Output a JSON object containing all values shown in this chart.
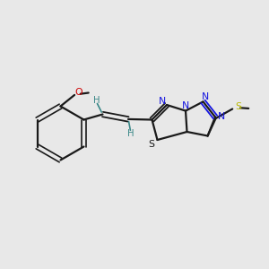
{
  "bg_color": "#e8e8e8",
  "bond_color": "#1a1a1a",
  "N_color": "#1414e0",
  "S_ring_color": "#1a1a1a",
  "S_methyl_color": "#b8b800",
  "O_color": "#cc0000",
  "H_color": "#3a8888",
  "figsize": [
    3.0,
    3.0
  ],
  "dpi": 100,
  "xlim": [
    0,
    10
  ],
  "ylim": [
    0,
    10
  ]
}
